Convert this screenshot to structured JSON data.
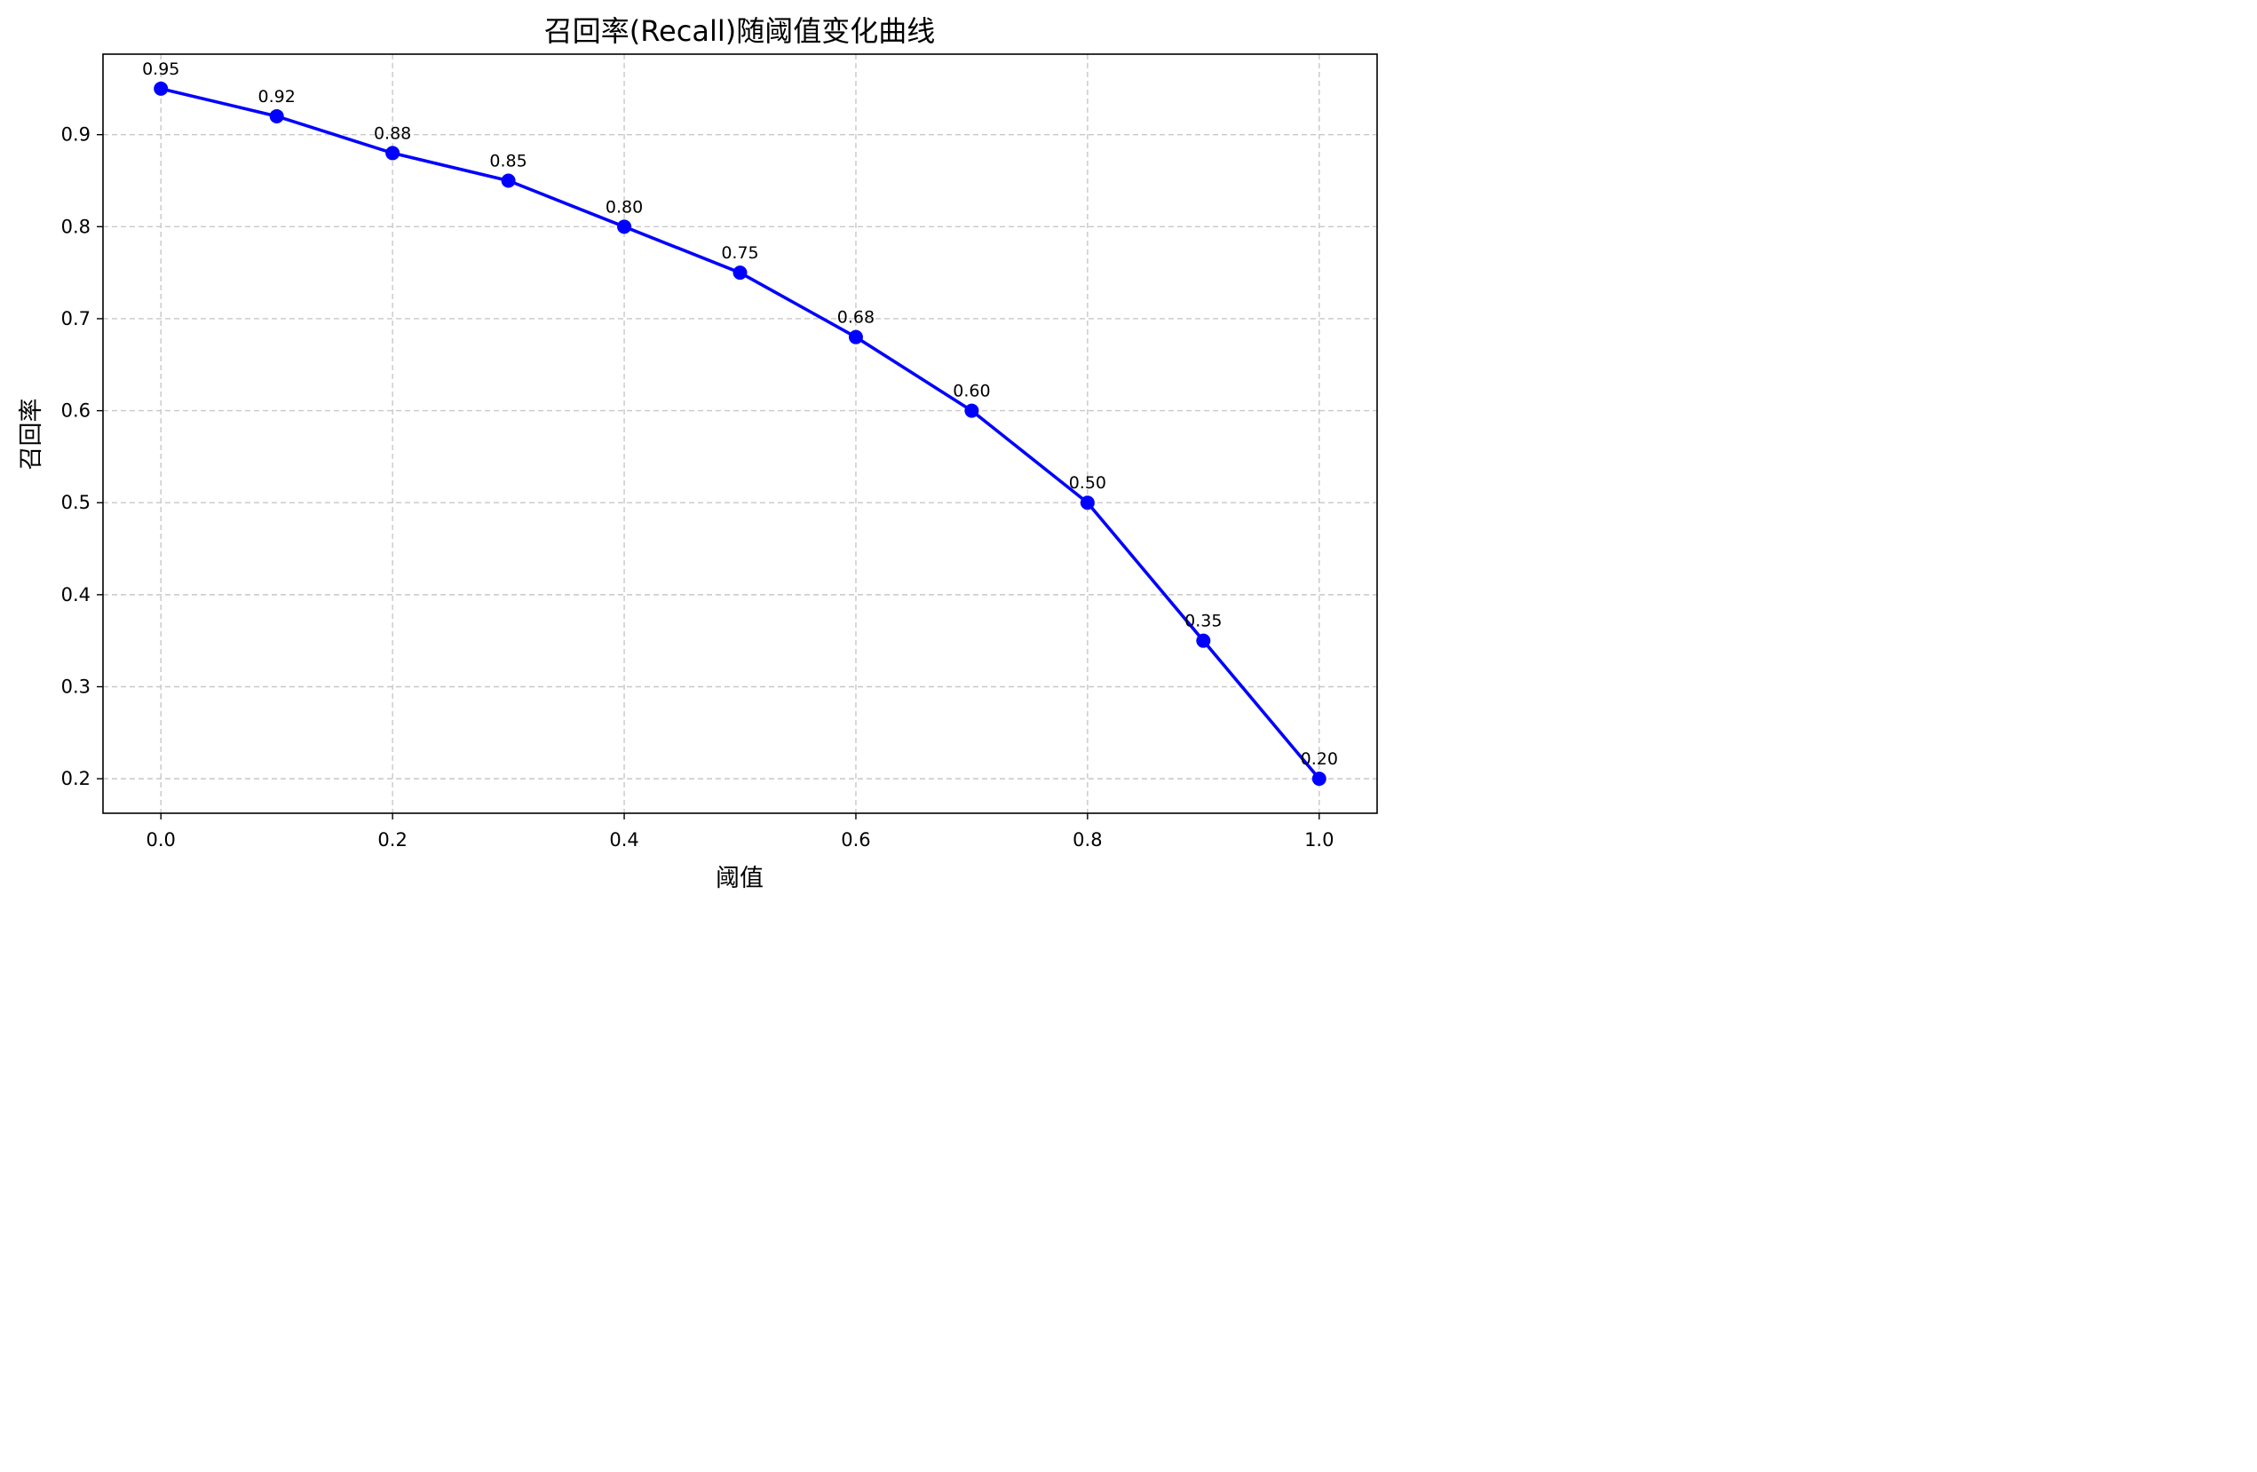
{
  "chart_data": {
    "type": "line",
    "title": "召回率(Recall)随阈值变化曲线",
    "xlabel": "阈值",
    "ylabel": "召回率",
    "x": [
      0.0,
      0.1,
      0.2,
      0.3,
      0.4,
      0.5,
      0.6,
      0.7,
      0.8,
      0.9,
      1.0
    ],
    "series": [
      {
        "values": [
          0.95,
          0.92,
          0.88,
          0.85,
          0.8,
          0.75,
          0.68,
          0.6,
          0.5,
          0.35,
          0.2
        ],
        "labels": [
          "0.95",
          "0.92",
          "0.88",
          "0.85",
          "0.80",
          "0.75",
          "0.68",
          "0.60",
          "0.50",
          "0.35",
          "0.20"
        ],
        "color": "#0000ff",
        "marker": "circle"
      }
    ],
    "xlim": [
      -0.05,
      1.05
    ],
    "ylim": [
      0.1625,
      0.9875
    ],
    "xticks": [
      "0.0",
      "0.2",
      "0.4",
      "0.6",
      "0.8",
      "1.0"
    ],
    "xtick_values": [
      0.0,
      0.2,
      0.4,
      0.6,
      0.8,
      1.0
    ],
    "yticks": [
      "0.2",
      "0.3",
      "0.4",
      "0.5",
      "0.6",
      "0.7",
      "0.8",
      "0.9"
    ],
    "ytick_values": [
      0.2,
      0.3,
      0.4,
      0.5,
      0.6,
      0.7,
      0.8,
      0.9
    ],
    "grid": true,
    "grid_style": "dashed"
  }
}
